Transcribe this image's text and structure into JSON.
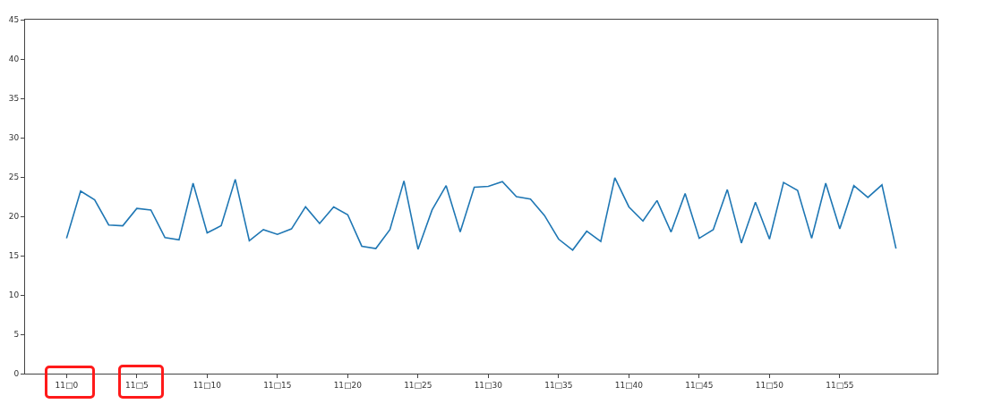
{
  "chart_data": {
    "type": "line",
    "categories": [
      "11□0",
      null,
      null,
      null,
      null,
      "11□5",
      null,
      null,
      null,
      null,
      "11□10",
      null,
      null,
      null,
      null,
      "11□15",
      null,
      null,
      null,
      null,
      "11□20",
      null,
      null,
      null,
      null,
      "11□25",
      null,
      null,
      null,
      null,
      "11□30",
      null,
      null,
      null,
      null,
      "11□35",
      null,
      null,
      null,
      null,
      "11□40",
      null,
      null,
      null,
      null,
      "11□45",
      null,
      null,
      null,
      null,
      "11□50",
      null,
      null,
      null,
      null,
      "11□55",
      null,
      null,
      null,
      null
    ],
    "series": [
      {
        "color": "#1f77b4",
        "values": [
          17.2,
          23.2,
          22.1,
          18.9,
          18.8,
          21.0,
          20.8,
          17.3,
          17.0,
          24.2,
          17.9,
          18.8,
          24.7,
          16.9,
          18.3,
          17.7,
          18.4,
          21.2,
          19.1,
          21.2,
          20.2,
          16.2,
          15.9,
          18.3,
          24.5,
          15.8,
          20.8,
          23.9,
          18.0,
          23.7,
          23.8,
          24.4,
          22.5,
          22.2,
          20.1,
          17.1,
          15.7,
          18.1,
          16.8,
          24.9,
          21.2,
          19.4,
          22.0,
          18.0,
          22.9,
          17.2,
          18.3,
          23.4,
          16.6,
          21.8,
          17.1,
          24.3,
          23.3,
          17.2,
          24.2,
          18.4,
          23.9,
          22.4,
          24.0,
          15.9
        ]
      }
    ],
    "ylim": [
      0,
      45
    ],
    "yticks": [
      0,
      5,
      10,
      15,
      20,
      25,
      30,
      35,
      40,
      45
    ],
    "grid": false,
    "marker": "none",
    "line_style": "solid"
  }
}
